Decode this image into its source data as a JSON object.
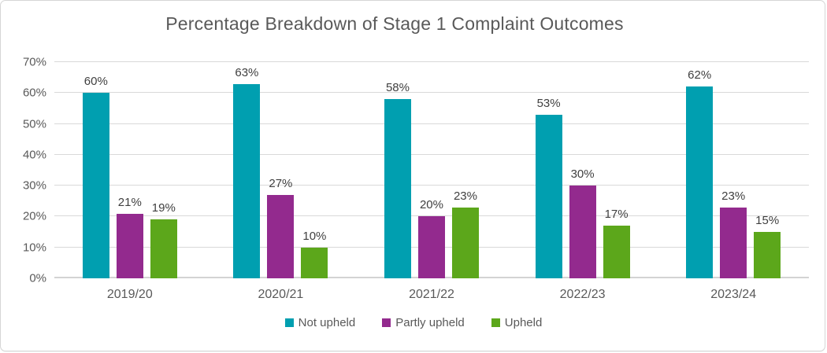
{
  "chart_data": {
    "type": "bar",
    "title": "Percentage Breakdown of Stage 1 Complaint Outcomes",
    "categories": [
      "2019/20",
      "2020/21",
      "2021/22",
      "2022/23",
      "2023/24"
    ],
    "series": [
      {
        "name": "Not upheld",
        "color": "#009fb0",
        "values": [
          60,
          63,
          58,
          53,
          62
        ],
        "value_labels": [
          "60%",
          "63%",
          "58%",
          "53%",
          "62%"
        ]
      },
      {
        "name": "Partly upheld",
        "color": "#932a8e",
        "values": [
          21,
          27,
          20,
          30,
          23
        ],
        "value_labels": [
          "21%",
          "27%",
          "20%",
          "30%",
          "23%"
        ]
      },
      {
        "name": "Upheld",
        "color": "#5ca71b",
        "values": [
          19,
          10,
          23,
          17,
          15
        ],
        "value_labels": [
          "19%",
          "10%",
          "23%",
          "17%",
          "15%"
        ]
      }
    ],
    "xlabel": "",
    "ylabel": "",
    "ylim": [
      0,
      70
    ],
    "yticks": [
      {
        "value": 0,
        "label": "0%"
      },
      {
        "value": 10,
        "label": "10%"
      },
      {
        "value": 20,
        "label": "20%"
      },
      {
        "value": 30,
        "label": "30%"
      },
      {
        "value": 40,
        "label": "40%"
      },
      {
        "value": 50,
        "label": "50%"
      },
      {
        "value": 60,
        "label": "60%"
      },
      {
        "value": 70,
        "label": "70%"
      }
    ],
    "grid": "horizontal",
    "legend_position": "bottom"
  },
  "colors": {
    "title_text": "#595959",
    "axis_text": "#595959",
    "data_label_text": "#3f3f3f",
    "gridline": "#d9d9d9",
    "frame_border": "#d6d6d6",
    "background": "#ffffff"
  }
}
